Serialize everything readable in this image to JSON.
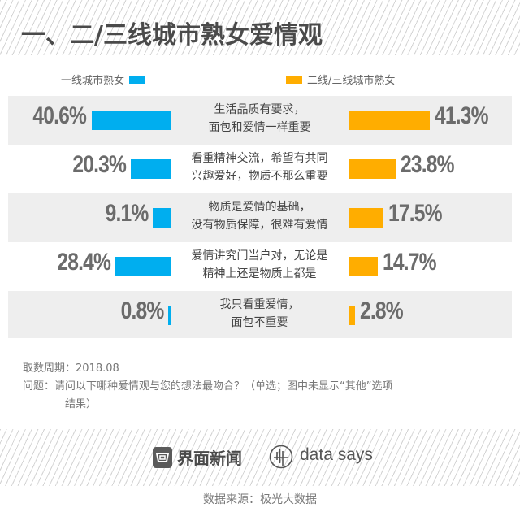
{
  "header": {
    "title": "一、二/三线城市熟女爱情观"
  },
  "legend": {
    "left": {
      "label": "一线城市熟女",
      "color": "#00aeef"
    },
    "right": {
      "label": "二线/三线城市熟女",
      "color": "#ffad00"
    }
  },
  "rows": [
    {
      "label_line1": "生活品质有要求，",
      "label_line2": "面包和爱情一样重要",
      "left_value": "40.6%",
      "right_value": "41.3%"
    },
    {
      "label_line1": "看重精神交流，希望有共同",
      "label_line2": "兴趣爱好，物质不那么重要",
      "left_value": "20.3%",
      "right_value": "23.8%"
    },
    {
      "label_line1": "物质是爱情的基础，",
      "label_line2": "没有物质保障，很难有爱情",
      "left_value": "9.1%",
      "right_value": "17.5%"
    },
    {
      "label_line1": "爱情讲究门当户对，无论是",
      "label_line2": "精神上还是物质上都是",
      "left_value": "28.4%",
      "right_value": "14.7%"
    },
    {
      "label_line1": "我只看重爱情，",
      "label_line2": "面包不重要",
      "left_value": "0.8%",
      "right_value": "2.8%"
    }
  ],
  "notes": {
    "period": "取数周期：2018.08",
    "question_line1": "问题：请问以下哪种爱情观与您的想法最吻合？（单选；图中未显示“其他”选项",
    "question_line2": "结果）"
  },
  "footer": {
    "brand1": "界面新闻",
    "brand2": "data says",
    "source": "数据来源：极光大数据"
  },
  "watermark": {
    "brand1": "界面新闻",
    "brand2": "data says"
  },
  "chart_data": {
    "type": "bar",
    "orientation": "horizontal-butterfly",
    "title": "一、二/三线城市熟女爱情观",
    "categories": [
      "生活品质有要求，面包和爱情一样重要",
      "看重精神交流，希望有共同兴趣爱好，物质不那么重要",
      "物质是爱情的基础，没有物质保障，很难有爱情",
      "爱情讲究门当户对，无论是精神上还是物质上都是",
      "我只看重爱情，面包不重要"
    ],
    "series": [
      {
        "name": "一线城市熟女",
        "color": "#00aeef",
        "values": [
          40.6,
          20.3,
          9.1,
          28.4,
          0.8
        ]
      },
      {
        "name": "二线/三线城市熟女",
        "color": "#ffad00",
        "values": [
          41.3,
          23.8,
          17.5,
          14.7,
          2.8
        ]
      }
    ],
    "unit": "%",
    "legend_position": "top",
    "grid": false,
    "xlabel": "",
    "ylabel": ""
  }
}
